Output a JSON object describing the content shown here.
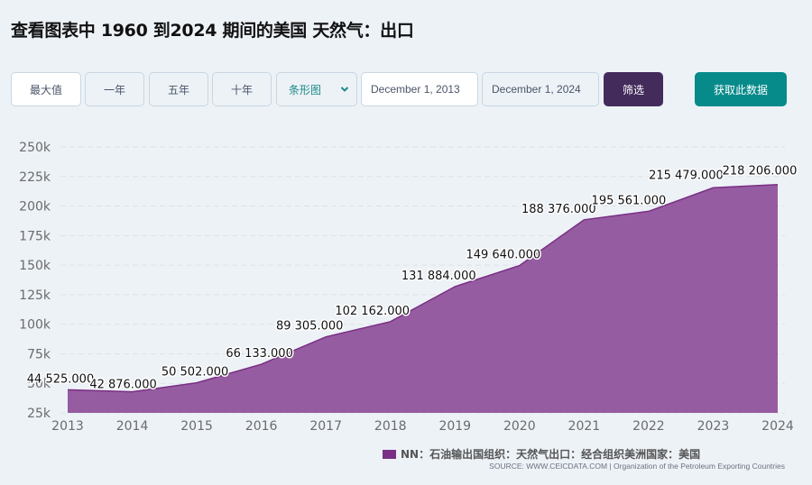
{
  "page": {
    "title": "查看图表中 1960 到2024 期间的美国 天然气：出口"
  },
  "toolbar": {
    "range_buttons": [
      {
        "label": "最大值",
        "active": true
      },
      {
        "label": "一年",
        "active": false
      },
      {
        "label": "五年",
        "active": false
      },
      {
        "label": "十年",
        "active": false
      }
    ],
    "chart_type_select": {
      "selected": "条形图"
    },
    "date_start": "December 1, 2013",
    "date_end": "December 1, 2024",
    "filter_label": "筛选",
    "get_data_label": "获取此数据"
  },
  "colors": {
    "area_fill": "#8e4f99",
    "area_line": "#7a2f85",
    "filter_button": "#432b5b",
    "get_data_button": "#078a8a",
    "background": "#edf2f7"
  },
  "legend": {
    "label": "NN：石油输出国组织：天然气出口：经合组织美洲国家：美国"
  },
  "source": {
    "text": "SOURCE: WWW.CEICDATA.COM | Organization of the Petroleum Exporting Countries"
  },
  "chart_data": {
    "type": "area",
    "title": "查看图表中 1960 到2024 期间的美国 天然气：出口",
    "xlabel": "",
    "ylabel": "",
    "x": [
      2013,
      2014,
      2015,
      2016,
      2017,
      2018,
      2019,
      2020,
      2021,
      2022,
      2023,
      2024
    ],
    "series": [
      {
        "name": "NN：石油输出国组织：天然气出口：经合组织美洲国家：美国",
        "values": [
          44525,
          42876,
          50502,
          66133,
          89305,
          102162,
          131884,
          149640,
          188376,
          195561,
          215479,
          218206
        ],
        "labels": [
          "44 525.000",
          "42 876.000",
          "50 502.000",
          "66 133.000",
          "89 305.000",
          "102 162.000",
          "131 884.000",
          "149 640.000",
          "188 376.000",
          "195 561.000",
          "215 479.000",
          "218 206.000"
        ]
      }
    ],
    "y_ticks": [
      "25k",
      "50k",
      "75k",
      "100k",
      "125k",
      "150k",
      "175k",
      "200k",
      "225k",
      "250k"
    ],
    "x_ticks": [
      "2013",
      "2014",
      "2015",
      "2016",
      "2017",
      "2018",
      "2019",
      "2020",
      "2021",
      "2022",
      "2023",
      "2024"
    ],
    "ylim": [
      25000,
      250000
    ],
    "grid": true,
    "legend_position": "bottom-right"
  }
}
